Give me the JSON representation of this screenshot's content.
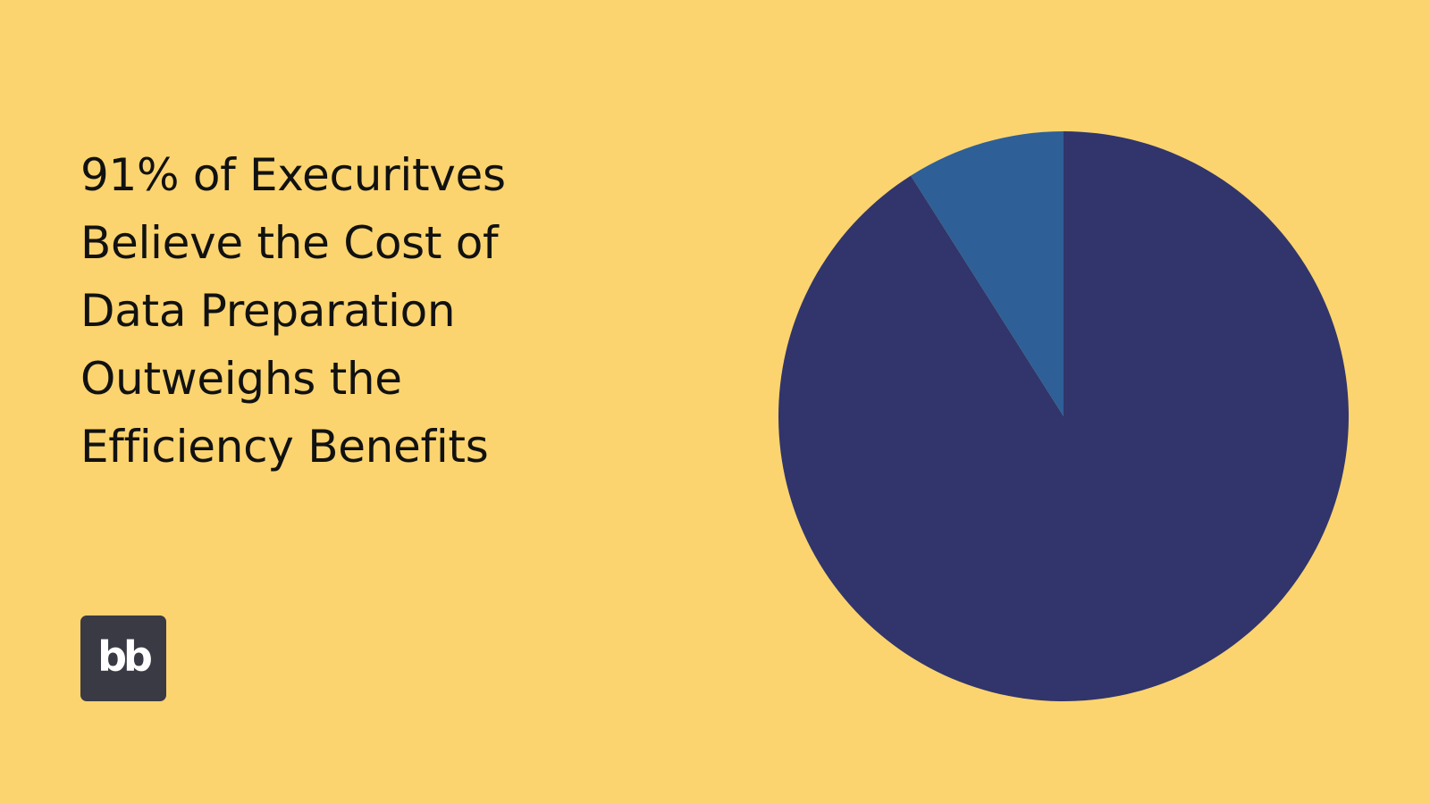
{
  "colors": {
    "background": "#FBD46F",
    "primary_slice": "#31356B",
    "secondary_slice": "#2E5F97",
    "logo_background": "#393A44",
    "title_text": "#111111"
  },
  "headline_lines": [
    "91% of Execuritves",
    "Believe the Cost of",
    "Data Preparation",
    "Outweighs the",
    "Efficiency Benefits"
  ],
  "logo": {
    "text": "bb"
  },
  "chart_data": {
    "type": "pie",
    "title": "",
    "start_angle": "12 o'clock",
    "direction": "clockwise",
    "legend": "none",
    "slices": [
      {
        "name": "",
        "value": 91,
        "color": "#31356B"
      },
      {
        "name": "",
        "value": 9,
        "color": "#2E5F97"
      }
    ]
  }
}
